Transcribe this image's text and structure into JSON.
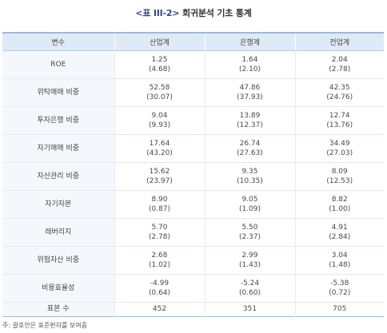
{
  "caption": {
    "tag": "<표 III-2>",
    "title": "회귀분석 기초 통계"
  },
  "table": {
    "headers": [
      "변수",
      "산업계",
      "은행계",
      "전업계"
    ],
    "rows": [
      {
        "variable": "ROE",
        "values": [
          "1.25",
          "1.64",
          "2.04"
        ],
        "errors": [
          "(4.68)",
          "(2.10)",
          "(2.78)"
        ]
      },
      {
        "variable": "위탁매매 비중",
        "values": [
          "52.58",
          "47.86",
          "42.35"
        ],
        "errors": [
          "(30.07)",
          "(37.93)",
          "(24.76)"
        ]
      },
      {
        "variable": "투자은행 비중",
        "values": [
          "9.04",
          "13.89",
          "12.74"
        ],
        "errors": [
          "(9.93)",
          "(12.37)",
          "(13.76)"
        ]
      },
      {
        "variable": "자기매매 비중",
        "values": [
          "17.64",
          "26.74",
          "34.49"
        ],
        "errors": [
          "(43.20)",
          "(27.63)",
          "(27.03)"
        ]
      },
      {
        "variable": "자산관리 비중",
        "values": [
          "15.62",
          "9.35",
          "8.09"
        ],
        "errors": [
          "(23.97)",
          "(10.35)",
          "(12.53)"
        ]
      },
      {
        "variable": "자기자본",
        "values": [
          "8.90",
          "9.05",
          "8.82"
        ],
        "errors": [
          "(0.87)",
          "(1.09)",
          "(1.00)"
        ]
      },
      {
        "variable": "레버리지",
        "values": [
          "5.70",
          "5.50",
          "4.91"
        ],
        "errors": [
          "(2.78)",
          "(2.37)",
          "(2.84)"
        ]
      },
      {
        "variable": "위험자산 비중",
        "values": [
          "2.68",
          "2.99",
          "3.04"
        ],
        "errors": [
          "(1.02)",
          "(1.43)",
          "(1.48)"
        ]
      },
      {
        "variable": "비용효율성",
        "values": [
          "-4.99",
          "-5.24",
          "-5.38"
        ],
        "errors": [
          "(0.64)",
          "(0.60)",
          "(0.72)"
        ]
      }
    ],
    "count_row": {
      "variable": "표본 수",
      "values": [
        "452",
        "351",
        "705"
      ]
    }
  },
  "footnote": "주: 괄호안은 표준편차를 보여줌",
  "colors": {
    "header_bg": "#dfeaf7",
    "variable_bg": "#f4f8fd",
    "accent_line": "#9fb8d6",
    "caption_tag": "#2a4b8c"
  }
}
